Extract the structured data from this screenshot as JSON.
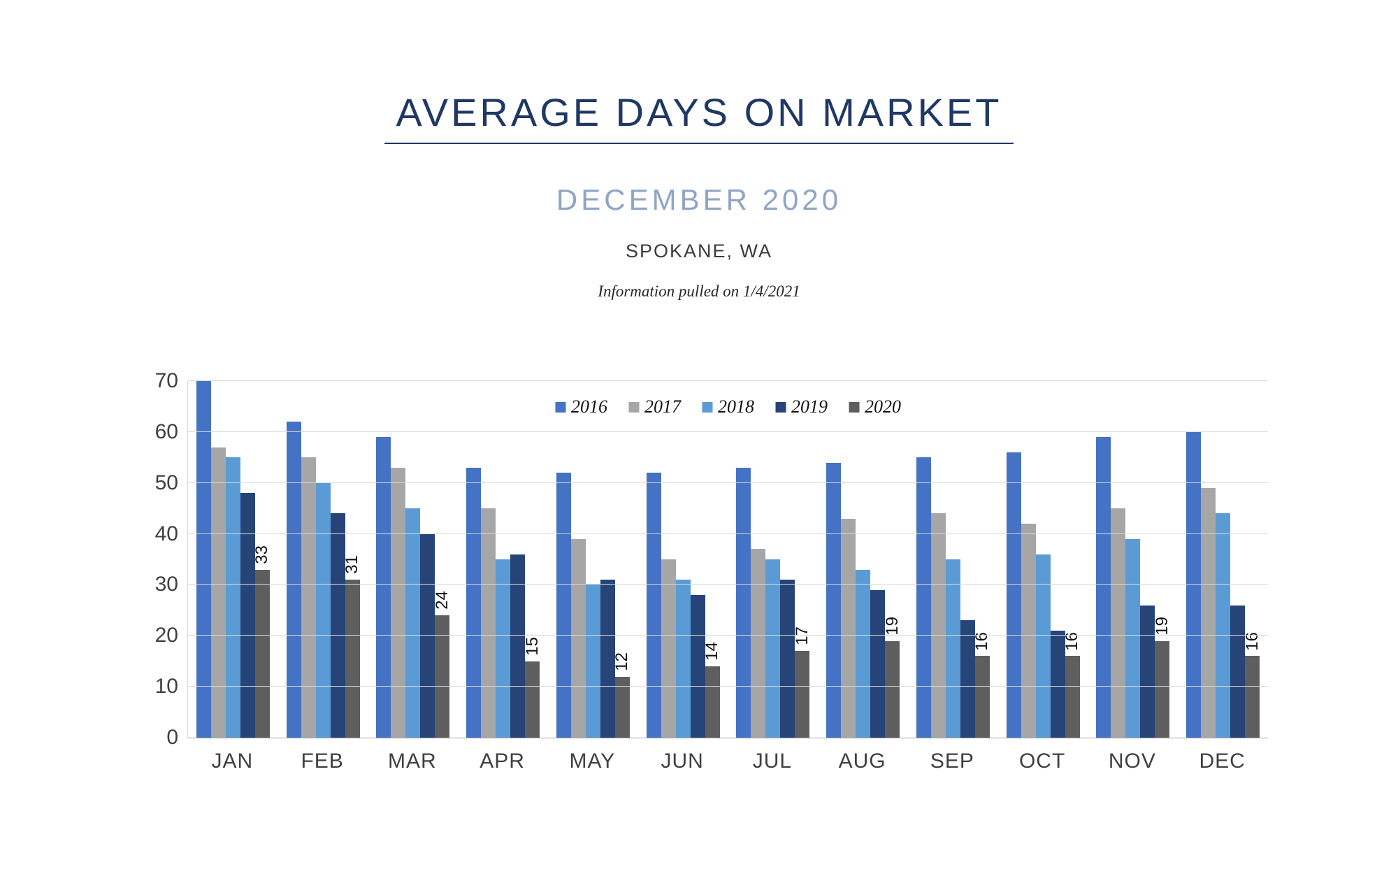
{
  "header": {
    "title": "AVERAGE DAYS ON MARKET",
    "subtitle": "DECEMBER 2020",
    "location": "SPOKANE, WA",
    "info": "Information pulled on 1/4/2021"
  },
  "chart_data": {
    "type": "bar",
    "title": "AVERAGE DAYS ON MARKET",
    "xlabel": "",
    "ylabel": "",
    "ylim": [
      0,
      70
    ],
    "ytick_step": 10,
    "grid": true,
    "legend_position": "top-center-inside",
    "categories": [
      "JAN",
      "FEB",
      "MAR",
      "APR",
      "MAY",
      "JUN",
      "JUL",
      "AUG",
      "SEP",
      "OCT",
      "NOV",
      "DEC"
    ],
    "series": [
      {
        "name": "2016",
        "color": "#4472C4",
        "values": [
          70,
          62,
          59,
          53,
          52,
          52,
          53,
          54,
          55,
          56,
          59,
          60
        ]
      },
      {
        "name": "2017",
        "color": "#A6A6A6",
        "values": [
          57,
          55,
          53,
          45,
          39,
          35,
          37,
          43,
          44,
          42,
          45,
          49
        ]
      },
      {
        "name": "2018",
        "color": "#5B9BD5",
        "values": [
          55,
          50,
          45,
          35,
          30,
          31,
          35,
          33,
          35,
          36,
          39,
          44
        ]
      },
      {
        "name": "2019",
        "color": "#264478",
        "values": [
          48,
          44,
          40,
          36,
          31,
          28,
          31,
          29,
          23,
          21,
          26,
          26
        ]
      },
      {
        "name": "2020",
        "color": "#5E5E5E",
        "values": [
          33,
          31,
          24,
          15,
          12,
          14,
          17,
          19,
          16,
          16,
          19,
          16
        ],
        "data_labels": true
      }
    ]
  }
}
